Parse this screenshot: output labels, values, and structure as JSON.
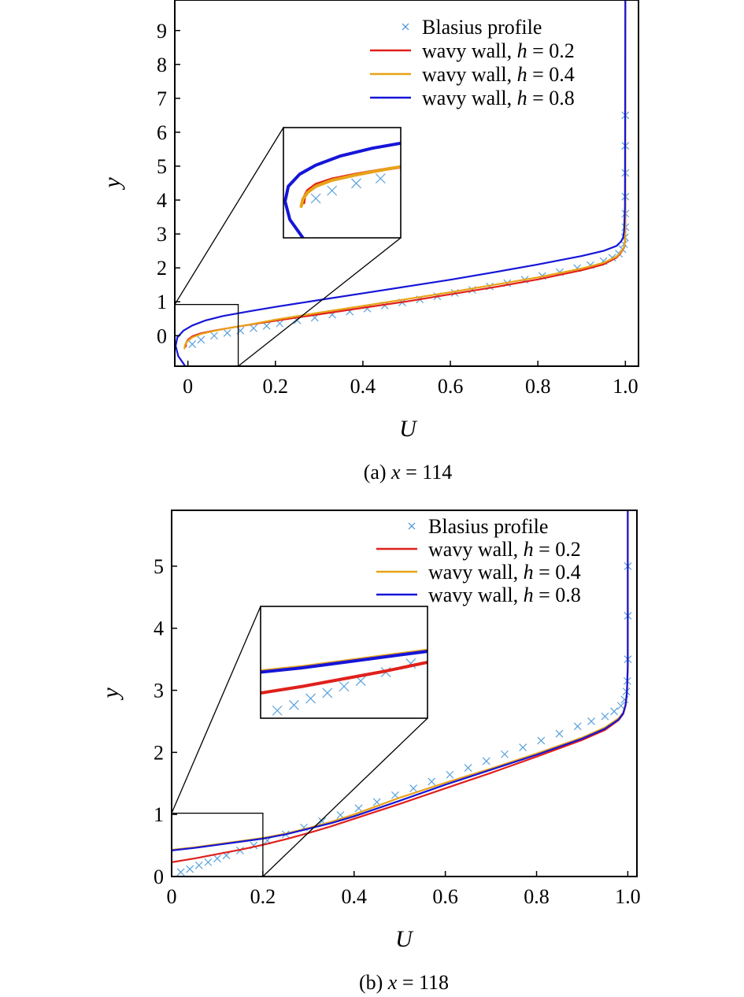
{
  "chart_data": [
    {
      "type": "line",
      "caption": {
        "prefix": "(a) ",
        "var": "x",
        "rest": " = 114"
      },
      "xlabel": "U",
      "ylabel": "y",
      "xlim": [
        -0.03,
        1.03
      ],
      "ylim": [
        -0.9,
        9.9
      ],
      "xticks": [
        0,
        0.2,
        0.4,
        0.6,
        0.8,
        1.0
      ],
      "xtick_labels": [
        "0",
        "0.2",
        "0.4",
        "0.6",
        "0.8",
        "1.0"
      ],
      "yticks": [
        0,
        1,
        2,
        3,
        4,
        5,
        6,
        7,
        8,
        9
      ],
      "ytick_labels": [
        "0",
        "1",
        "2",
        "3",
        "4",
        "5",
        "6",
        "7",
        "8",
        "9"
      ],
      "legend_position": "top-right",
      "zoom_box": {
        "x": [
          -0.03,
          0.115
        ],
        "y": [
          -0.9,
          0.92
        ]
      },
      "series": [
        {
          "name": "Blasius profile",
          "marker": "x",
          "color": "#3a8fd6",
          "x": [
            0.01,
            0.03,
            0.06,
            0.09,
            0.12,
            0.15,
            0.18,
            0.21,
            0.25,
            0.29,
            0.33,
            0.37,
            0.41,
            0.45,
            0.49,
            0.53,
            0.57,
            0.61,
            0.65,
            0.69,
            0.73,
            0.77,
            0.81,
            0.85,
            0.89,
            0.92,
            0.95,
            0.97,
            0.985,
            0.993,
            0.997,
            0.999,
            1.0,
            1.0,
            1.0,
            1.0,
            1.0,
            1.0
          ],
          "y": [
            -0.25,
            -0.12,
            0.0,
            0.08,
            0.15,
            0.22,
            0.29,
            0.36,
            0.45,
            0.53,
            0.62,
            0.71,
            0.8,
            0.89,
            0.98,
            1.07,
            1.16,
            1.26,
            1.35,
            1.45,
            1.55,
            1.65,
            1.76,
            1.87,
            1.99,
            2.08,
            2.2,
            2.3,
            2.42,
            2.55,
            2.7,
            2.9,
            3.2,
            3.6,
            4.1,
            4.8,
            5.6,
            6.5
          ]
        },
        {
          "name": "wavy wall, h = 0.2",
          "name_parts": [
            "wavy wall, ",
            "h",
            " = 0.2"
          ],
          "color": "#e0201b",
          "x": [
            -0.005,
            -0.004,
            0.0,
            0.01,
            0.03,
            0.06,
            0.1,
            0.15,
            0.2,
            0.3,
            0.4,
            0.5,
            0.6,
            0.7,
            0.8,
            0.9,
            0.95,
            0.98,
            0.99,
            0.997,
            0.999,
            1.0,
            1.0
          ],
          "y": [
            -0.32,
            -0.22,
            -0.12,
            -0.02,
            0.07,
            0.15,
            0.24,
            0.34,
            0.44,
            0.63,
            0.82,
            1.01,
            1.22,
            1.43,
            1.66,
            1.93,
            2.1,
            2.3,
            2.45,
            2.6,
            2.8,
            3.2,
            9.9
          ]
        },
        {
          "name": "wavy wall, h = 0.4",
          "name_parts": [
            "wavy wall, ",
            "h",
            " = 0.4"
          ],
          "color": "#e8a317",
          "x": [
            -0.008,
            -0.006,
            0.0,
            0.01,
            0.03,
            0.06,
            0.1,
            0.15,
            0.2,
            0.3,
            0.4,
            0.5,
            0.6,
            0.7,
            0.8,
            0.9,
            0.95,
            0.98,
            0.99,
            0.997,
            0.999,
            1.0,
            1.0
          ],
          "y": [
            -0.38,
            -0.26,
            -0.15,
            -0.05,
            0.05,
            0.14,
            0.24,
            0.35,
            0.47,
            0.68,
            0.88,
            1.08,
            1.28,
            1.5,
            1.72,
            1.98,
            2.15,
            2.33,
            2.47,
            2.62,
            2.8,
            3.2,
            9.9
          ]
        },
        {
          "name": "wavy wall, h = 0.8",
          "name_parts": [
            "wavy wall, ",
            "h",
            " = 0.8"
          ],
          "color": "#1515d8",
          "x": [
            -0.006,
            -0.022,
            -0.028,
            -0.024,
            -0.01,
            0.01,
            0.04,
            0.08,
            0.14,
            0.2,
            0.3,
            0.4,
            0.5,
            0.6,
            0.7,
            0.8,
            0.9,
            0.95,
            0.98,
            0.99,
            0.995,
            0.997,
            0.999,
            1.0
          ],
          "y": [
            -0.9,
            -0.6,
            -0.3,
            -0.05,
            0.15,
            0.3,
            0.45,
            0.58,
            0.72,
            0.85,
            1.05,
            1.25,
            1.45,
            1.65,
            1.87,
            2.1,
            2.35,
            2.5,
            2.65,
            2.78,
            2.9,
            3.1,
            3.8,
            9.9
          ]
        }
      ]
    },
    {
      "type": "line",
      "caption": {
        "prefix": "(b) ",
        "var": "x",
        "rest": " = 118"
      },
      "xlabel": "U",
      "ylabel": "y",
      "xlim": [
        0.0,
        1.02
      ],
      "ylim": [
        0.0,
        5.9
      ],
      "xticks": [
        0,
        0.2,
        0.4,
        0.6,
        0.8,
        1.0
      ],
      "xtick_labels": [
        "0",
        "0.2",
        "0.4",
        "0.6",
        "0.8",
        "1.0"
      ],
      "yticks": [
        0,
        1,
        2,
        3,
        4,
        5
      ],
      "ytick_labels": [
        "0",
        "1",
        "2",
        "3",
        "4",
        "5"
      ],
      "legend_position": "top-right",
      "zoom_box": {
        "x": [
          0.0,
          0.2
        ],
        "y": [
          0.0,
          1.02
        ]
      },
      "series": [
        {
          "name": "Blasius profile",
          "marker": "x",
          "color": "#3a8fd6",
          "x": [
            0.02,
            0.04,
            0.06,
            0.08,
            0.1,
            0.12,
            0.15,
            0.18,
            0.21,
            0.25,
            0.29,
            0.33,
            0.37,
            0.41,
            0.45,
            0.49,
            0.53,
            0.57,
            0.61,
            0.65,
            0.69,
            0.73,
            0.77,
            0.81,
            0.85,
            0.89,
            0.92,
            0.95,
            0.97,
            0.985,
            0.993,
            0.997,
            0.999,
            1.0,
            1.0,
            1.0
          ],
          "y": [
            0.07,
            0.12,
            0.18,
            0.23,
            0.29,
            0.34,
            0.42,
            0.5,
            0.58,
            0.68,
            0.79,
            0.89,
            0.99,
            1.1,
            1.2,
            1.31,
            1.42,
            1.53,
            1.64,
            1.75,
            1.86,
            1.97,
            2.08,
            2.19,
            2.3,
            2.42,
            2.5,
            2.58,
            2.66,
            2.75,
            2.85,
            2.98,
            3.15,
            3.5,
            4.2,
            5.0
          ]
        },
        {
          "name": "wavy wall, h = 0.2",
          "name_parts": [
            "wavy wall, ",
            "h",
            " = 0.2"
          ],
          "color": "#e0201b",
          "x": [
            0.0,
            0.05,
            0.1,
            0.15,
            0.2,
            0.25,
            0.3,
            0.35,
            0.4,
            0.5,
            0.6,
            0.7,
            0.8,
            0.9,
            0.95,
            0.98,
            0.99,
            0.995,
            0.998,
            1.0,
            1.0
          ],
          "y": [
            0.23,
            0.29,
            0.36,
            0.43,
            0.51,
            0.6,
            0.7,
            0.81,
            0.93,
            1.17,
            1.42,
            1.67,
            1.93,
            2.2,
            2.36,
            2.52,
            2.62,
            2.75,
            2.95,
            3.4,
            5.9
          ]
        },
        {
          "name": "wavy wall, h = 0.4",
          "name_parts": [
            "wavy wall, ",
            "h",
            " = 0.4"
          ],
          "color": "#e8a317",
          "x": [
            0.0,
            0.05,
            0.1,
            0.15,
            0.2,
            0.25,
            0.3,
            0.35,
            0.4,
            0.5,
            0.6,
            0.7,
            0.8,
            0.9,
            0.95,
            0.98,
            0.99,
            0.995,
            0.998,
            1.0,
            1.0
          ],
          "y": [
            0.43,
            0.47,
            0.52,
            0.57,
            0.62,
            0.69,
            0.78,
            0.88,
            1.0,
            1.27,
            1.51,
            1.74,
            1.98,
            2.24,
            2.4,
            2.55,
            2.64,
            2.77,
            2.97,
            3.4,
            5.9
          ]
        },
        {
          "name": "wavy wall, h = 0.8",
          "name_parts": [
            "wavy wall, ",
            "h",
            " = 0.8"
          ],
          "color": "#1515d8",
          "x": [
            0.0,
            0.05,
            0.1,
            0.15,
            0.2,
            0.25,
            0.3,
            0.35,
            0.4,
            0.5,
            0.6,
            0.7,
            0.8,
            0.9,
            0.95,
            0.98,
            0.99,
            0.995,
            0.998,
            1.0,
            1.0
          ],
          "y": [
            0.42,
            0.46,
            0.51,
            0.56,
            0.61,
            0.68,
            0.77,
            0.86,
            0.97,
            1.22,
            1.48,
            1.72,
            1.96,
            2.22,
            2.38,
            2.53,
            2.63,
            2.76,
            2.96,
            3.4,
            5.9
          ]
        }
      ]
    }
  ]
}
